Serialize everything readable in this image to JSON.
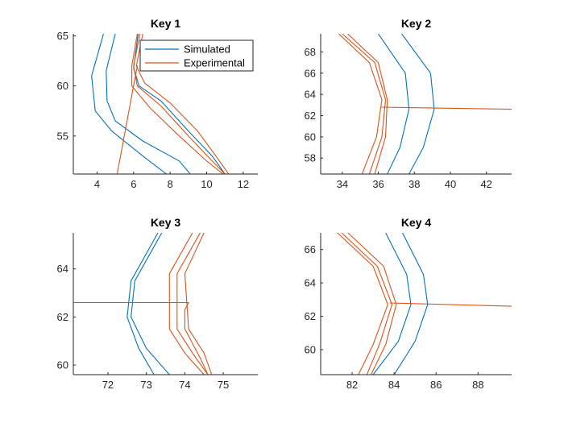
{
  "colors": {
    "simulated": "#0072BD",
    "experimental": "#D95319",
    "axis": "#262626",
    "background": "#ffffff"
  },
  "legend": {
    "entries": [
      "Simulated",
      "Experimental"
    ],
    "placement": "top-right of Key 1 axes"
  },
  "chart_data": [
    {
      "type": "line",
      "title": "Key 1",
      "xlabel": "",
      "ylabel": "",
      "xlim": [
        2.7,
        12.8
      ],
      "ylim": [
        51.2,
        65.2
      ],
      "xticks": [
        4,
        6,
        8,
        10,
        12
      ],
      "yticks": [
        55,
        60,
        65
      ],
      "grid": false,
      "series": [
        {
          "name": "Simulated",
          "color": "simulated",
          "points": [
            [
              5.0,
              65.2
            ],
            [
              4.5,
              61.5
            ],
            [
              4.55,
              58.5
            ],
            [
              5.0,
              56.5
            ],
            [
              6.5,
              54.5
            ],
            [
              8.5,
              52.5
            ],
            [
              9.1,
              51.2
            ]
          ]
        },
        {
          "name": "Simulated",
          "color": "simulated",
          "points": [
            [
              4.35,
              65.2
            ],
            [
              3.7,
              61.0
            ],
            [
              3.9,
              57.5
            ],
            [
              4.8,
              55.5
            ],
            [
              6.5,
              53.0
            ],
            [
              7.8,
              51.2
            ]
          ]
        },
        {
          "color": "simulated",
          "points": [
            [
              6.25,
              65.2
            ],
            [
              6.0,
              61.8
            ],
            [
              6.3,
              60.0
            ],
            [
              7.5,
              58.5
            ],
            [
              9.0,
              55.5
            ],
            [
              10.3,
              53.0
            ],
            [
              11.0,
              51.2
            ]
          ]
        },
        {
          "name": "Experimental",
          "color": "experimental",
          "points": [
            [
              6.5,
              65.2
            ],
            [
              6.15,
              62.0
            ],
            [
              6.6,
              60.3
            ],
            [
              8.0,
              58.3
            ],
            [
              9.5,
              55.5
            ],
            [
              10.5,
              53.0
            ],
            [
              11.2,
              51.2
            ]
          ]
        },
        {
          "color": "experimental",
          "points": [
            [
              6.35,
              65.2
            ],
            [
              6.0,
              62.0
            ],
            [
              6.2,
              60.0
            ],
            [
              7.5,
              58.0
            ],
            [
              9.0,
              55.0
            ],
            [
              10.3,
              52.5
            ],
            [
              11.0,
              51.2
            ]
          ]
        },
        {
          "color": "experimental",
          "points": [
            [
              6.2,
              65.2
            ],
            [
              5.9,
              62.0
            ],
            [
              5.9,
              60.0
            ],
            [
              6.9,
              57.8
            ],
            [
              8.5,
              55.0
            ],
            [
              10.0,
              52.5
            ],
            [
              10.9,
              51.2
            ]
          ]
        },
        {
          "color": "experimental",
          "points": [
            [
              5.1,
              51.2
            ],
            [
              6.2,
              62.0
            ]
          ]
        }
      ]
    },
    {
      "type": "line",
      "title": "Key 2",
      "xlabel": "",
      "ylabel": "",
      "xlim": [
        32.8,
        43.4
      ],
      "ylim": [
        56.5,
        69.7
      ],
      "xticks": [
        34,
        36,
        38,
        40,
        42
      ],
      "yticks": [
        58,
        60,
        62,
        64,
        66,
        68
      ],
      "grid": false,
      "series": [
        {
          "name": "Simulated",
          "color": "simulated",
          "points": [
            [
              36.0,
              69.7
            ],
            [
              37.5,
              66.0
            ],
            [
              37.7,
              62.6
            ],
            [
              37.2,
              59.0
            ],
            [
              36.5,
              56.5
            ]
          ]
        },
        {
          "color": "simulated",
          "points": [
            [
              37.3,
              69.7
            ],
            [
              38.9,
              66.0
            ],
            [
              39.1,
              62.6
            ],
            [
              38.5,
              59.0
            ],
            [
              37.7,
              56.5
            ]
          ]
        },
        {
          "name": "Experimental",
          "color": "experimental",
          "points": [
            [
              34.0,
              69.7
            ],
            [
              35.8,
              67.0
            ],
            [
              36.4,
              63.5
            ],
            [
              36.2,
              60.0
            ],
            [
              35.5,
              56.5
            ]
          ]
        },
        {
          "color": "experimental",
          "points": [
            [
              33.8,
              69.7
            ],
            [
              35.5,
              67.0
            ],
            [
              36.2,
              63.5
            ],
            [
              35.9,
              60.0
            ],
            [
              35.1,
              56.5
            ]
          ]
        },
        {
          "color": "experimental",
          "points": [
            [
              34.3,
              69.7
            ],
            [
              36.0,
              67.0
            ],
            [
              36.5,
              63.5
            ],
            [
              36.4,
              60.0
            ],
            [
              35.8,
              56.5
            ]
          ]
        },
        {
          "color": "experimental",
          "points": [
            [
              36.2,
              62.8
            ],
            [
              43.4,
              62.6
            ]
          ]
        }
      ]
    },
    {
      "type": "line",
      "title": "Key 3",
      "xlabel": "",
      "ylabel": "",
      "xlim": [
        71.1,
        75.9
      ],
      "ylim": [
        59.6,
        65.5
      ],
      "xticks": [
        72,
        73,
        74,
        75
      ],
      "yticks": [
        60,
        62,
        64
      ],
      "grid": false,
      "series": [
        {
          "name": "Simulated",
          "color": "simulated",
          "points": [
            [
              73.3,
              65.5
            ],
            [
              72.6,
              63.5
            ],
            [
              72.5,
              62.0
            ],
            [
              72.8,
              60.7
            ],
            [
              73.2,
              59.6
            ]
          ]
        },
        {
          "color": "simulated",
          "points": [
            [
              73.4,
              65.5
            ],
            [
              72.7,
              63.5
            ],
            [
              72.6,
              62.0
            ],
            [
              73.0,
              60.7
            ],
            [
              73.6,
              59.6
            ]
          ]
        },
        {
          "name": "Experimental",
          "color": "experimental",
          "points": [
            [
              74.2,
              65.5
            ],
            [
              73.6,
              63.8
            ],
            [
              73.6,
              61.5
            ],
            [
              74.0,
              60.5
            ],
            [
              74.5,
              59.6
            ]
          ]
        },
        {
          "color": "experimental",
          "points": [
            [
              74.4,
              65.5
            ],
            [
              73.8,
              63.8
            ],
            [
              73.8,
              61.5
            ],
            [
              74.2,
              60.5
            ],
            [
              74.6,
              59.6
            ]
          ]
        },
        {
          "color": "experimental",
          "points": [
            [
              74.5,
              65.5
            ],
            [
              74.0,
              63.8
            ],
            [
              74.1,
              61.5
            ],
            [
              74.5,
              60.5
            ],
            [
              74.7,
              59.6
            ]
          ]
        },
        {
          "color": "experimental",
          "points": [
            [
              71.1,
              62.6
            ],
            [
              74.1,
              62.6
            ],
            [
              74.0,
              62.3
            ],
            [
              74.0,
              61.5
            ],
            [
              74.4,
              60.3
            ],
            [
              74.6,
              59.6
            ]
          ]
        }
      ]
    },
    {
      "type": "line",
      "title": "Key 4",
      "xlabel": "",
      "ylabel": "",
      "xlim": [
        80.5,
        89.6
      ],
      "ylim": [
        58.5,
        67.0
      ],
      "xticks": [
        82,
        84,
        86,
        88
      ],
      "yticks": [
        60,
        62,
        64,
        66
      ],
      "grid": false,
      "series": [
        {
          "name": "Simulated",
          "color": "simulated",
          "points": [
            [
              83.6,
              67.0
            ],
            [
              84.6,
              64.5
            ],
            [
              84.8,
              62.7
            ],
            [
              84.2,
              60.5
            ],
            [
              83.0,
              58.5
            ]
          ]
        },
        {
          "color": "simulated",
          "points": [
            [
              84.4,
              67.0
            ],
            [
              85.4,
              64.5
            ],
            [
              85.6,
              62.7
            ],
            [
              85.0,
              60.5
            ],
            [
              84.0,
              58.5
            ]
          ]
        },
        {
          "name": "Experimental",
          "color": "experimental",
          "points": [
            [
              81.5,
              67.0
            ],
            [
              83.2,
              65.0
            ],
            [
              83.9,
              62.7
            ],
            [
              83.3,
              60.3
            ],
            [
              82.7,
              58.5
            ]
          ]
        },
        {
          "color": "experimental",
          "points": [
            [
              81.3,
              67.0
            ],
            [
              83.0,
              65.0
            ],
            [
              83.7,
              62.7
            ],
            [
              83.0,
              60.3
            ],
            [
              82.3,
              58.5
            ]
          ]
        },
        {
          "color": "experimental",
          "points": [
            [
              81.8,
              67.0
            ],
            [
              83.5,
              65.0
            ],
            [
              84.1,
              62.7
            ],
            [
              83.6,
              60.3
            ],
            [
              82.9,
              58.5
            ]
          ]
        },
        {
          "color": "experimental",
          "points": [
            [
              83.8,
              62.8
            ],
            [
              89.6,
              62.6
            ]
          ]
        }
      ]
    }
  ]
}
